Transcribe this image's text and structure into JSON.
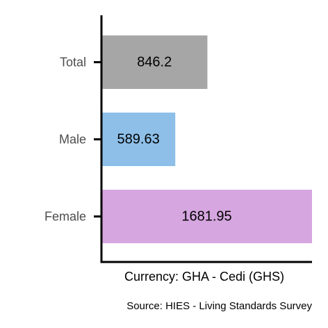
{
  "chart_data": {
    "type": "bar",
    "orientation": "horizontal",
    "categories": [
      "Total",
      "Male",
      "Female"
    ],
    "values": [
      846.2,
      589.63,
      1681.95
    ],
    "value_labels": [
      "846.2",
      "589.63",
      "1681.95"
    ],
    "colors": [
      "#a6a6a6",
      "#8dbfe9",
      "#d6a6e0"
    ],
    "title": "",
    "xlabel": "Currency: GHA - Cedi (GHS)",
    "ylabel": "",
    "caption": "Source:  HIES - Living Standards Survey",
    "xlim": [
      0,
      1681.95
    ],
    "grid": false,
    "legend": "none"
  }
}
